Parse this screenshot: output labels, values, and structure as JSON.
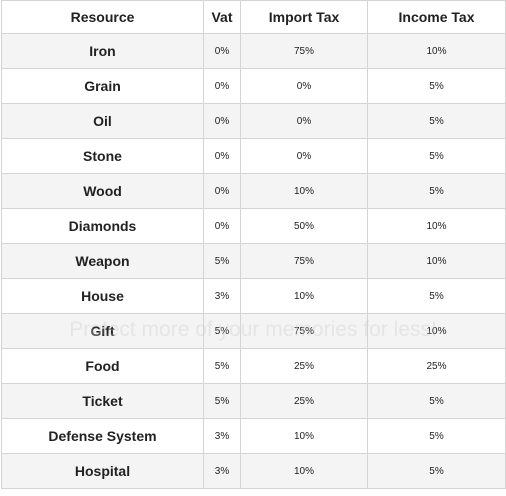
{
  "table": {
    "header": [
      "Resource",
      "Vat",
      "Import Tax",
      "Income Tax"
    ],
    "rows": [
      [
        "Iron",
        "0%",
        "75%",
        "10%"
      ],
      [
        "Grain",
        "0%",
        "0%",
        "5%"
      ],
      [
        "Oil",
        "0%",
        "0%",
        "5%"
      ],
      [
        "Stone",
        "0%",
        "0%",
        "5%"
      ],
      [
        "Wood",
        "0%",
        "10%",
        "5%"
      ],
      [
        "Diamonds",
        "0%",
        "50%",
        "10%"
      ],
      [
        "Weapon",
        "5%",
        "75%",
        "10%"
      ],
      [
        "House",
        "3%",
        "10%",
        "5%"
      ],
      [
        "Gift",
        "5%",
        "75%",
        "10%"
      ],
      [
        "Food",
        "5%",
        "25%",
        "25%"
      ],
      [
        "Ticket",
        "5%",
        "25%",
        "5%"
      ],
      [
        "Defense System",
        "3%",
        "10%",
        "5%"
      ],
      [
        "Hospital",
        "3%",
        "10%",
        "5%"
      ]
    ]
  },
  "watermark": "Protect more of your memories for less!"
}
